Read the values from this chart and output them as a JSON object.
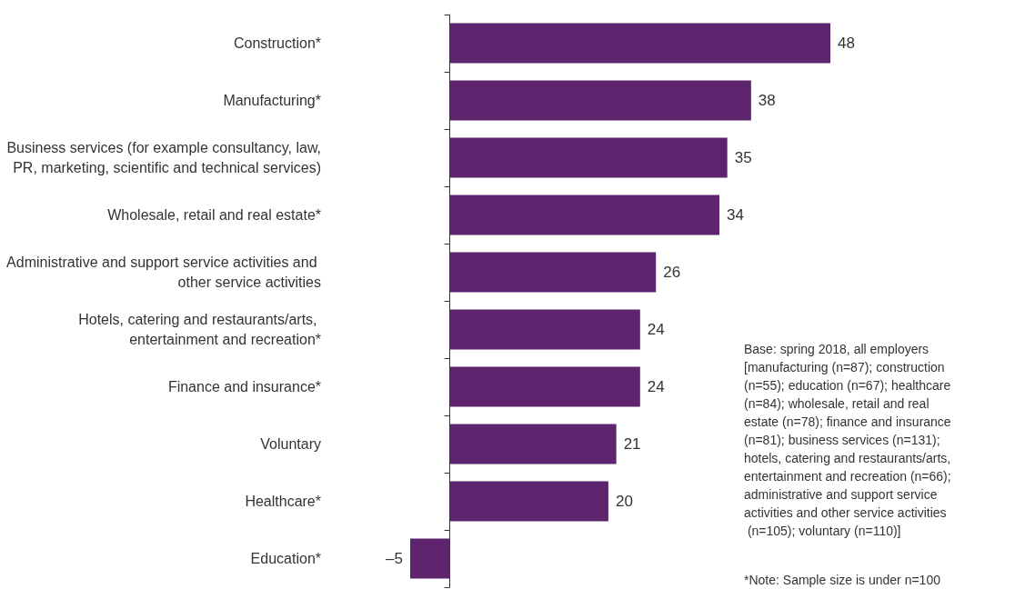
{
  "chart_data": {
    "type": "bar",
    "orientation": "horizontal",
    "categories": [
      "Construction*",
      "Manufacturing*",
      "Business services (for example consultancy, law, PR, marketing, scientific and technical services)",
      "Wholesale, retail and real estate*",
      "Administrative and support service activities and other service activities",
      "Hotels, catering and restaurants/arts, entertainment and recreation*",
      "Finance and insurance*",
      "Voluntary",
      "Healthcare*",
      "Education*"
    ],
    "values": [
      48,
      38,
      35,
      34,
      26,
      24,
      24,
      21,
      20,
      -5
    ],
    "value_labels": [
      "48",
      "38",
      "35",
      "34",
      "26",
      "24",
      "24",
      "21",
      "20",
      "–5"
    ],
    "color": "#5f246e",
    "annotations": [
      "Base: spring 2018, all employers [manufacturing (n=87); construction (n=55); education (n=67); healthcare (n=84); wholesale, retail and real estate (n=78); finance and insurance (n=81); business services (n=131); hotels, catering and restaurants/arts, entertainment and recreation (n=66); administrative and support service activities and other service activities (n=105); voluntary (n=110)]",
      "*Note: Sample size is under n=100"
    ]
  }
}
